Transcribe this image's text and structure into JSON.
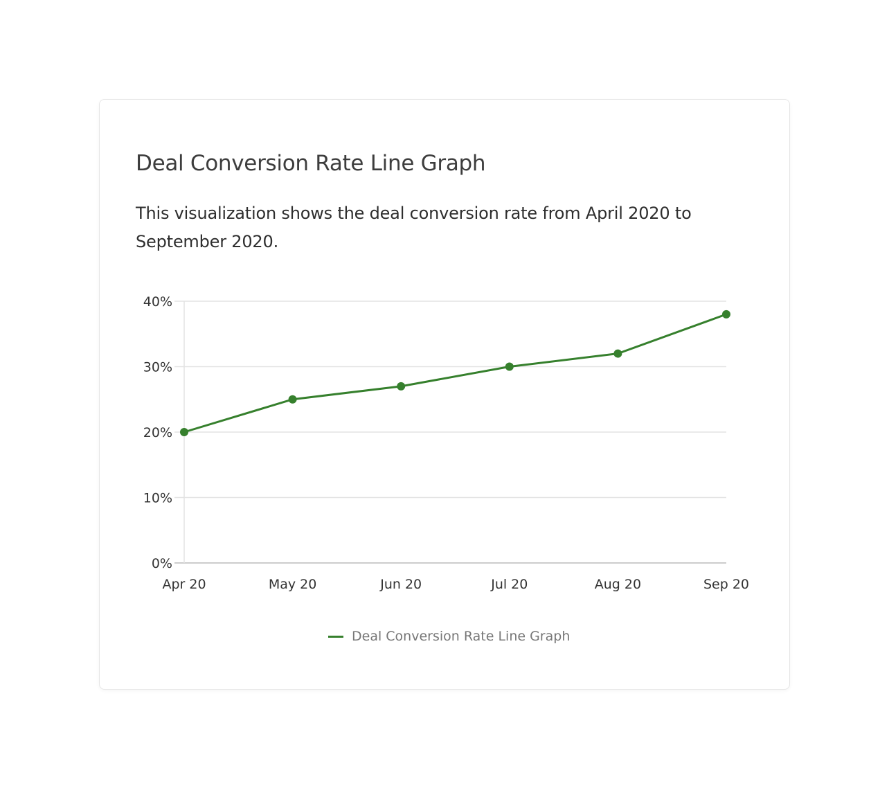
{
  "chart_data": {
    "type": "line",
    "title": "Deal Conversion Rate Line Graph",
    "subtitle": "This visualization shows the deal conversion rate from April 2020 to September 2020.",
    "categories": [
      "Apr 20",
      "May 20",
      "Jun 20",
      "Jul 20",
      "Aug 20",
      "Sep 20"
    ],
    "series": [
      {
        "name": "Deal Conversion Rate Line Graph",
        "values": [
          20,
          25,
          27,
          30,
          32,
          38
        ],
        "color": "#36802d"
      }
    ],
    "yticks": [
      0,
      10,
      20,
      30,
      40
    ],
    "ytick_labels": [
      "0%",
      "10%",
      "20%",
      "30%",
      "40%"
    ],
    "ylim": [
      0,
      40
    ],
    "grid": true,
    "legend": "bottom"
  }
}
